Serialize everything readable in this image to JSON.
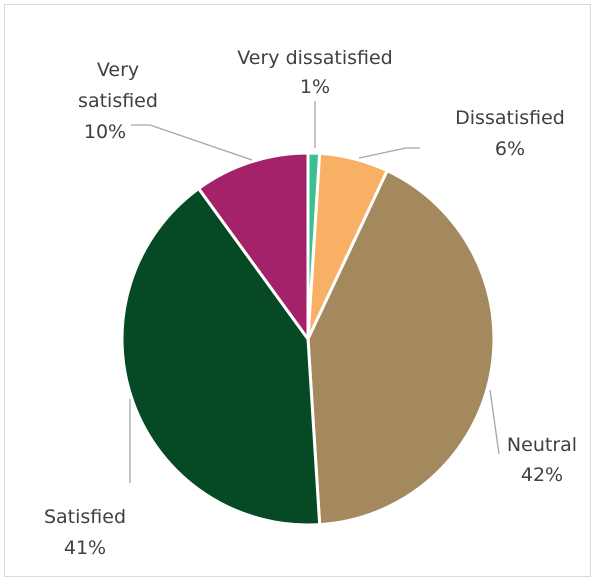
{
  "chart_data": {
    "type": "pie",
    "title": "",
    "slices": [
      {
        "label": "Very dissatisfied",
        "value": 1,
        "value_label": "1%",
        "color": "#3cc08f"
      },
      {
        "label": "Dissatisfied",
        "value": 6,
        "value_label": "6%",
        "color": "#f8b064"
      },
      {
        "label": "Neutral",
        "value": 42,
        "value_label": "42%",
        "color": "#a3895d"
      },
      {
        "label": "Satisfied",
        "value": 41,
        "value_label": "41%",
        "color": "#054a24"
      },
      {
        "label": "Very satisfied",
        "value": 10,
        "value_label": "10%",
        "color": "#a4226a"
      }
    ],
    "start_angle_deg": 0,
    "direction": "clockwise",
    "slice_border_color": "#ffffff",
    "legend": "none",
    "data_labels": "outside with leader lines"
  }
}
